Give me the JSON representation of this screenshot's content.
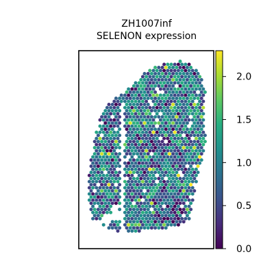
{
  "chart_data": {
    "type": "scatter",
    "title_lines": [
      "ZH1007inf",
      "SELENON expression"
    ],
    "xlabel": "",
    "ylabel": "",
    "colorbar": {
      "colormap": "viridis",
      "range": [
        0.0,
        2.3
      ],
      "ticks": [
        0.0,
        0.5,
        1.0,
        1.5,
        2.0
      ],
      "tick_labels": [
        "0.0",
        "0.5",
        "1.0",
        "1.5",
        "2.0"
      ]
    },
    "grid": false,
    "legend": "none",
    "x_ticks_shown": false,
    "y_ticks_shown": false,
    "tissue_regions": [
      {
        "name": "left-strip",
        "outline": [
          [
            0.07,
            0.1
          ],
          [
            0.22,
            0.18
          ],
          [
            0.36,
            0.32
          ],
          [
            0.33,
            0.55
          ],
          [
            0.32,
            0.75
          ],
          [
            0.27,
            0.86
          ],
          [
            0.2,
            0.9
          ],
          [
            0.1,
            0.86
          ],
          [
            0.06,
            0.7
          ],
          [
            0.08,
            0.45
          ],
          [
            0.11,
            0.3
          ],
          [
            0.17,
            0.2
          ]
        ],
        "outline_frame": "normalized-data-x-y"
      },
      {
        "name": "right-section",
        "outline": [
          [
            0.35,
            0.12
          ],
          [
            0.45,
            0.4
          ],
          [
            0.58,
            0.62
          ],
          [
            0.75,
            0.82
          ],
          [
            0.88,
            0.93
          ],
          [
            0.97,
            0.78
          ],
          [
            0.92,
            0.55
          ],
          [
            0.87,
            0.3
          ],
          [
            0.78,
            0.18
          ],
          [
            0.66,
            0.22
          ],
          [
            0.56,
            0.1
          ],
          [
            0.44,
            0.06
          ]
        ],
        "outline_frame": "normalized-data-x-y"
      }
    ],
    "spot_mean_expression": 0.95
  },
  "colors": {
    "frame": "#000000",
    "background": "#ffffff"
  }
}
